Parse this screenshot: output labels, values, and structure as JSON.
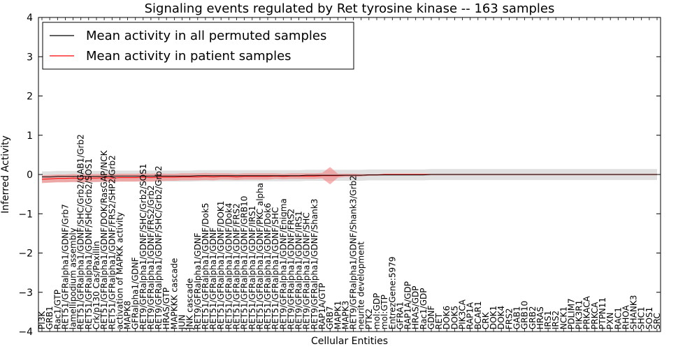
{
  "chart_data": {
    "type": "line",
    "title": "Signaling events regulated by Ret tyrosine kinase -- 163 samples",
    "xlabel": "Cellular Entities",
    "ylabel": "Inferred Activity",
    "ylim": [
      -4,
      4
    ],
    "yticks": [
      "4",
      "3",
      "2",
      "1",
      "0",
      "−1",
      "−2",
      "−3",
      "−4"
    ],
    "legend": {
      "position": "top-left",
      "entries": [
        "Mean activity in all permuted samples",
        "Mean activity in patient samples"
      ]
    },
    "series_colors": {
      "permuted": "#000000",
      "patient": "#ff0000",
      "patient_band": "#f48080",
      "permuted_band": "#cccccc"
    },
    "categories": [
      "PI3K",
      "GRB1",
      "Rac1/GTP",
      "RET51/GFRalpha1/GDNF/Grb7",
      "lamellipodium assembly",
      "RET51/GFRalpha1/GDNF/SHC/Grb2/GAB1/Grb2",
      "RET51/GFRalpha1/GDNF/SHC/Grb2/SOS1",
      "Crk/p130 Cas/Paxillin",
      "RET51/GFRalpha1/GDNF/DOK/RasGAP/NCK",
      "RET51/GFRalpha1/GDNF/FRS2/SHP2/Grb2",
      "activation of MAPKK activity",
      "MAPK8",
      "GFRalpha1/GDNF",
      "RET9/GFRalpha1/GDNF/SHC/Grb2/SOS1",
      "RET9/GFRalpha1/GDNF/FRS2/Grb2",
      "RET9/GFRalpha1/GDNF/SHC/Grb2/Grb2",
      "HRAS/GTP",
      "MAPKKK cascade",
      "JUN",
      "JNK cascade",
      "RET9/GFRalpha1/GDNF",
      "RET51/GFRalpha1/GDNF/Dok5",
      "RET51/GFRalpha1/GDNF",
      "RET51/GFRalpha1/GDNF/DOK1",
      "RET51/GFRalpha1/GDNF/Dok4",
      "RET51/GFRalpha1/GDNF/FRS2",
      "RET51/GFRalpha1/GDNF/GRB10",
      "RET51/GFRalpha1/GDNF/IRS1",
      "RET51/GFRalpha1/GDNF/PKC alpha",
      "RET51/GFRalpha1/GDNF/Dok6",
      "RET51/GFRalpha1/GDNF/SHC",
      "RET9/GFRalpha1/GDNF/Enigma",
      "RET9/GFRalpha1/GDNF/FRS2",
      "RET9/GFRalpha1/GDNF/IRS1",
      "RET9/GFRalpha1/GDNF/SHC",
      "RET9/GFRalpha1/GDNF/Shank3",
      "RAP1A/GTP",
      "GRB7",
      "MAPK1",
      "MAPK3",
      "RET9/GFRalpha1/GDNF/Shank3/Grb2",
      "neurite development",
      "PTK2",
      "mol:GDP",
      "mol:GTP",
      "EntrezGene:5979",
      "GFRA1",
      "RAP1A/GDP",
      "HRAS/GDP",
      "Rac1/GDP",
      "GDNF",
      "RET",
      "DOK6",
      "DOK5",
      "PIK3CA",
      "RAP1A",
      "BCAR1",
      "CRK",
      "DOK1",
      "DOK4",
      "FRS2",
      "GAB1",
      "GRB10",
      "GRB2",
      "HRAS",
      "IRS1",
      "IRS2",
      "NCK1",
      "PDLIM7",
      "PIK3R1",
      "PRKACA",
      "PRKCA",
      "PTPN11",
      "PXN",
      "RAC1",
      "RHOA",
      "SHANK3",
      "SHC1",
      "SOS1",
      "SRC"
    ],
    "series": [
      {
        "name": "Mean activity in all permuted samples",
        "values": [
          -0.06,
          -0.06,
          -0.05,
          -0.05,
          -0.05,
          -0.05,
          -0.05,
          -0.05,
          -0.05,
          -0.04,
          -0.04,
          -0.04,
          -0.04,
          -0.04,
          -0.04,
          -0.04,
          -0.04,
          -0.04,
          -0.04,
          -0.04,
          -0.03,
          -0.03,
          -0.03,
          -0.03,
          -0.03,
          -0.03,
          -0.03,
          -0.03,
          -0.03,
          -0.03,
          -0.03,
          -0.03,
          -0.03,
          -0.03,
          -0.02,
          -0.02,
          -0.02,
          -0.02,
          -0.02,
          -0.02,
          -0.02,
          -0.02,
          -0.01,
          -0.01,
          -0.01,
          -0.01,
          -0.01,
          -0.01,
          -0.01,
          -0.01,
          0.0,
          0.0,
          0.0,
          0.0,
          0.0,
          0.0,
          0.0,
          0.0,
          0.0,
          0.0,
          0.0,
          0.0,
          0.0,
          0.0,
          0.0,
          0.0,
          0.0,
          0.0,
          0.0,
          0.0,
          0.0,
          0.0,
          0.0,
          0.0,
          0.0,
          0.0,
          0.0,
          0.0,
          0.0,
          0.0
        ]
      },
      {
        "name": "Mean activity in patient samples",
        "values": [
          -0.12,
          -0.11,
          -0.1,
          -0.1,
          -0.09,
          -0.1,
          -0.09,
          -0.09,
          -0.08,
          -0.09,
          -0.08,
          -0.08,
          -0.08,
          -0.07,
          -0.08,
          -0.07,
          -0.07,
          -0.07,
          -0.06,
          -0.06,
          -0.06,
          -0.05,
          -0.06,
          -0.05,
          -0.05,
          -0.06,
          -0.05,
          -0.05,
          -0.05,
          -0.05,
          -0.04,
          -0.05,
          -0.04,
          -0.04,
          -0.04,
          -0.04,
          -0.03,
          -0.03,
          -0.03,
          -0.02,
          -0.02,
          -0.02,
          -0.01,
          -0.01,
          0.0,
          0.0,
          0.0,
          0.0,
          0.0,
          0.0,
          0.0,
          0.0,
          0.0,
          0.0,
          0.0,
          0.0,
          0.0,
          0.0,
          0.0,
          0.0,
          0.0,
          0.0,
          0.0,
          0.0,
          0.0,
          0.0,
          0.0,
          0.0,
          0.0,
          0.0,
          0.0,
          0.0,
          0.0,
          0.0,
          0.0,
          0.0,
          0.0,
          0.0,
          0.0,
          0.0
        ]
      }
    ],
    "bands": {
      "permuted_halfwidth": [
        0.14,
        0.14,
        0.14,
        0.14,
        0.14,
        0.14,
        0.14,
        0.14,
        0.14,
        0.14,
        0.14,
        0.14,
        0.14,
        0.14,
        0.14,
        0.14,
        0.14,
        0.14,
        0.14,
        0.14,
        0.14,
        0.14,
        0.14,
        0.14,
        0.14,
        0.14,
        0.14,
        0.14,
        0.14,
        0.14,
        0.14,
        0.14,
        0.14,
        0.14,
        0.14,
        0.14,
        0.14,
        0.14,
        0.14,
        0.14,
        0.14,
        0.14,
        0.14,
        0.14,
        0.14,
        0.14,
        0.14,
        0.14,
        0.14,
        0.14,
        0.14,
        0.14,
        0.14,
        0.14,
        0.14,
        0.14,
        0.14,
        0.14,
        0.14,
        0.14,
        0.14,
        0.14,
        0.14,
        0.14,
        0.14,
        0.14,
        0.14,
        0.14,
        0.14,
        0.14,
        0.14,
        0.14,
        0.14,
        0.14,
        0.14,
        0.14,
        0.14,
        0.14,
        0.14,
        0.14
      ],
      "patient_halfwidth": [
        0.1,
        0.1,
        0.1,
        0.1,
        0.1,
        0.1,
        0.1,
        0.1,
        0.1,
        0.1,
        0.1,
        0.1,
        0.1,
        0.1,
        0.1,
        0.1,
        0.09,
        0.09,
        0.09,
        0.09,
        0.09,
        0.09,
        0.09,
        0.08,
        0.08,
        0.08,
        0.08,
        0.08,
        0.08,
        0.08,
        0.07,
        0.07,
        0.07,
        0.07,
        0.07,
        0.07,
        0.07,
        0.22,
        0.05,
        0.04,
        0.04,
        0.03,
        0.02,
        0.02,
        0.02,
        0.02,
        0.02,
        0.02,
        0.02,
        0.02,
        0.02,
        0.02,
        0.02,
        0.02,
        0.02,
        0.02,
        0.02,
        0.02,
        0.02,
        0.02,
        0.02,
        0.02,
        0.02,
        0.02,
        0.02,
        0.02,
        0.02,
        0.02,
        0.02,
        0.02,
        0.02,
        0.02,
        0.02,
        0.02,
        0.02,
        0.02,
        0.02,
        0.02,
        0.02,
        0.02
      ]
    }
  }
}
